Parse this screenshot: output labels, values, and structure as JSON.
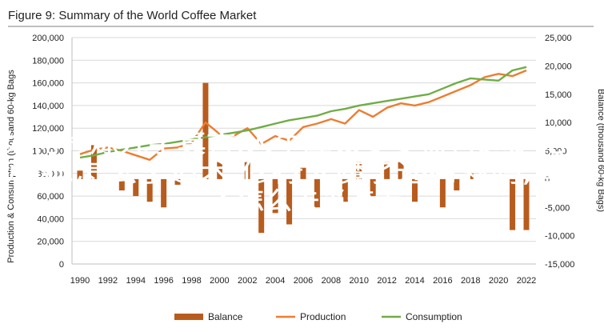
{
  "chart_data": {
    "type": "bar+line",
    "title": "Figure 9: Summary of the World Coffee Market",
    "y_left_label": "Production & Consumption (thousand 60-kg Bags",
    "y_right_label": "Balance (thousand 60-kg Bags)",
    "y_left_ticks": [
      "0",
      "20,000",
      "40,000",
      "60,000",
      "80,000",
      "100,000",
      "120,000",
      "140,000",
      "160,000",
      "180,000",
      "200,000"
    ],
    "y_right_ticks": [
      "-15,000",
      "-10,000",
      "-5,000",
      "0",
      "5,000",
      "10,000",
      "15,000",
      "20,000",
      "25,000"
    ],
    "x_ticks": [
      "1990",
      "1992",
      "1994",
      "1996",
      "1998",
      "2000",
      "2002",
      "2004",
      "2006",
      "2008",
      "2010",
      "2012",
      "2014",
      "2016",
      "2018",
      "2020",
      "2022"
    ],
    "y_left_lim": [
      0,
      200000
    ],
    "y_right_lim": [
      -15000,
      25000
    ],
    "x": [
      1990,
      1991,
      1992,
      1993,
      1994,
      1995,
      1996,
      1997,
      1998,
      1999,
      2000,
      2001,
      2002,
      2003,
      2004,
      2005,
      2006,
      2007,
      2008,
      2009,
      2010,
      2011,
      2012,
      2013,
      2014,
      2015,
      2016,
      2017,
      2018,
      2019,
      2020,
      2021,
      2022
    ],
    "series": [
      {
        "name": "Balance",
        "kind": "bar",
        "color": "#b85c1e",
        "values": [
          1500,
          6000,
          0,
          -2000,
          -3000,
          -4000,
          -5000,
          -1000,
          0,
          17000,
          3000,
          0,
          3000,
          -9500,
          -6000,
          -8000,
          2000,
          -5000,
          0,
          -4000,
          3000,
          -3000,
          3000,
          3000,
          -4000,
          0,
          -5000,
          -2000,
          1000,
          0,
          0,
          -9000,
          -9000
        ]
      },
      {
        "name": "Production",
        "kind": "line",
        "color": "#ed7d31",
        "values": [
          97000,
          101000,
          103000,
          100000,
          96000,
          92000,
          102000,
          103000,
          107000,
          125000,
          115000,
          113000,
          120000,
          106000,
          113000,
          109000,
          121000,
          124000,
          128000,
          124000,
          136000,
          130000,
          138000,
          142000,
          140000,
          143000,
          148000,
          153000,
          158000,
          165000,
          168000,
          166000,
          171000
        ]
      },
      {
        "name": "Consumption",
        "kind": "line",
        "color": "#70ad47",
        "values": [
          94000,
          96000,
          99000,
          101000,
          103000,
          105000,
          106000,
          108000,
          110000,
          112000,
          114000,
          116000,
          118000,
          121000,
          124000,
          127000,
          129000,
          131000,
          135000,
          137000,
          140000,
          142000,
          144000,
          146000,
          148000,
          150000,
          155000,
          160000,
          164000,
          163000,
          162000,
          171000,
          174000
        ]
      }
    ],
    "legend_position": "bottom"
  },
  "overlay_text": [
    "如何修炼九字真言,人生应该多多益善还是无欲",
    "则刚,怎么学道术,修行入魔了还有救吗,普通",
    "人怎么去当道士"
  ]
}
